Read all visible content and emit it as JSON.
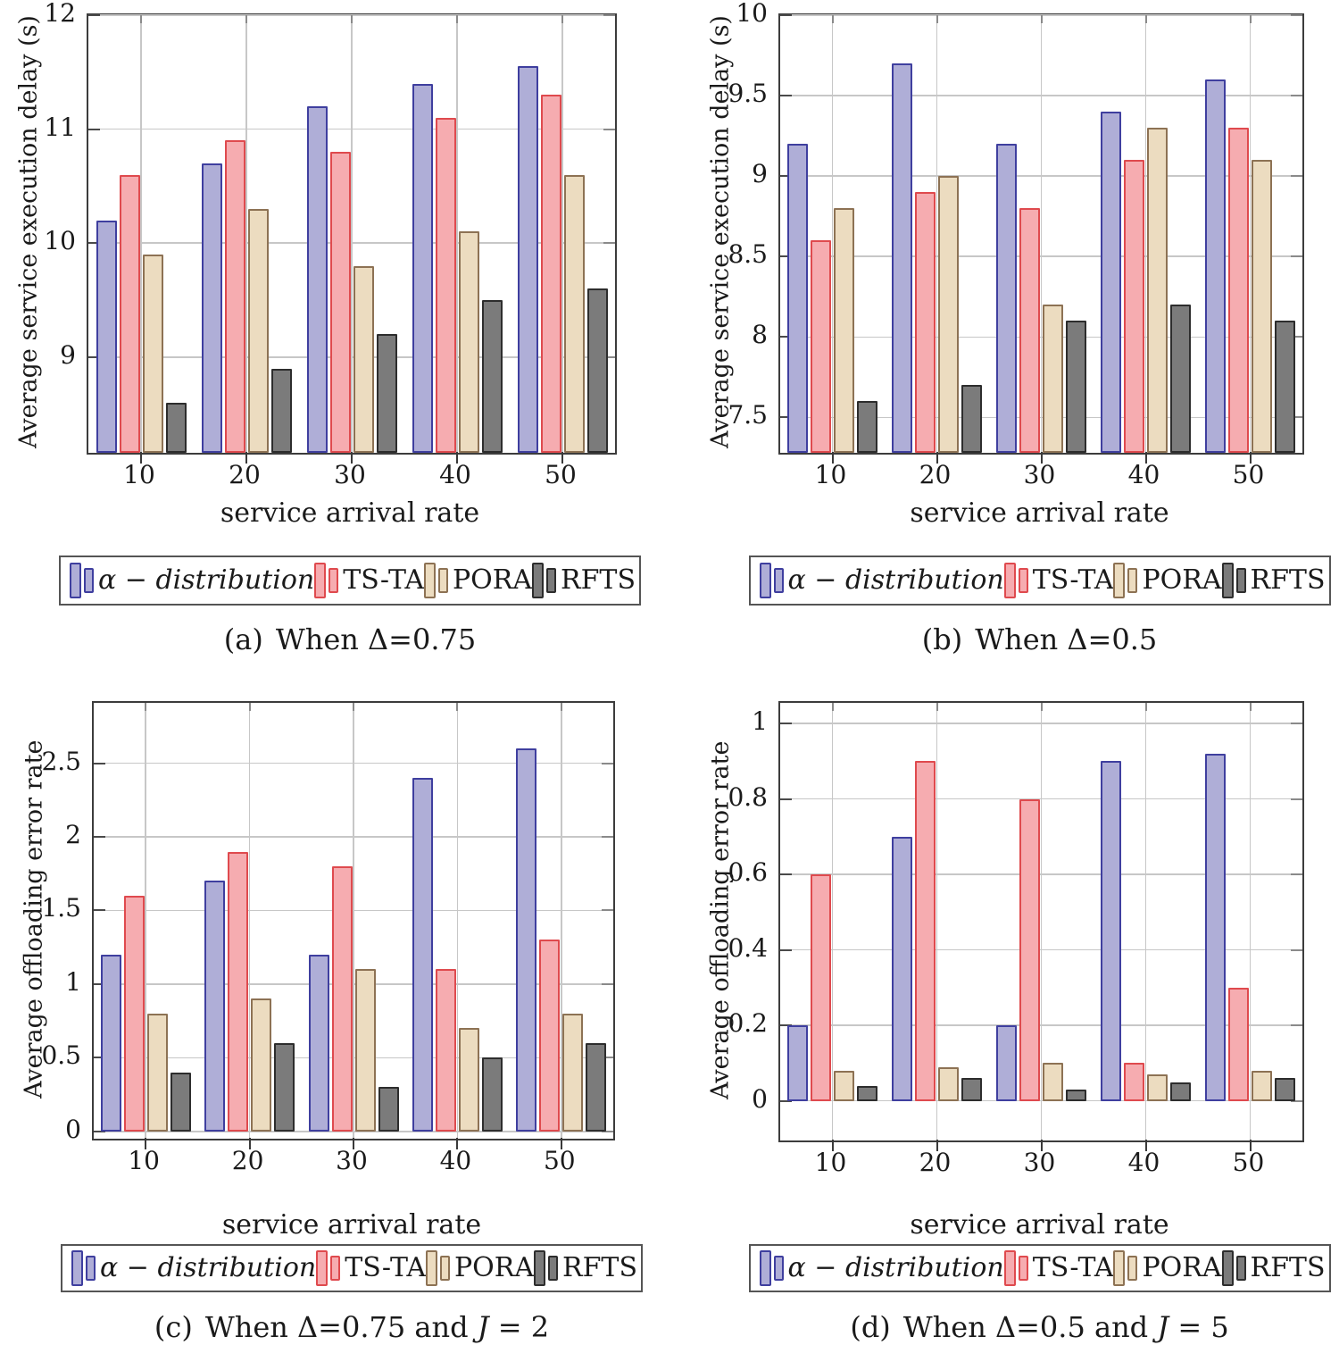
{
  "figure": {
    "x_categories": [
      "10",
      "20",
      "30",
      "40",
      "50"
    ],
    "series_names": [
      "α − distribution",
      "TS-TA",
      "PORA",
      "RFTS"
    ],
    "colors": {
      "alpha_fill": "#afaed7",
      "alpha_stroke": "#3f3f9f",
      "tsta_fill": "#f6acb0",
      "tsta_stroke": "#df4a4e",
      "pora_fill": "#ecdcc0",
      "pora_stroke": "#8d7254",
      "rfts_fill": "#7b7b7b",
      "rfts_stroke": "#2d2d2d",
      "grid": "#c7c7c7",
      "axis": "#3c3c3c"
    }
  },
  "chart_data": [
    {
      "panel": "a",
      "type": "bar",
      "ylabel": "Average service execution delay (s)",
      "xlabel": "service arrival rate",
      "caption_tag": "(a)",
      "caption_pre": "When Δ=0.75",
      "caption_j": "",
      "caption_post": "",
      "categories": [
        "10",
        "20",
        "30",
        "40",
        "50"
      ],
      "series": [
        {
          "name": "α − distribution",
          "fill": "#afaed7",
          "stroke": "#3f3f9f",
          "values": [
            10.2,
            10.7,
            11.2,
            11.4,
            11.55
          ]
        },
        {
          "name": "TS-TA",
          "fill": "#f6acb0",
          "stroke": "#df4a4e",
          "values": [
            10.6,
            10.9,
            10.8,
            11.1,
            11.3
          ]
        },
        {
          "name": "PORA",
          "fill": "#ecdcc0",
          "stroke": "#8d7254",
          "values": [
            9.9,
            10.3,
            9.8,
            10.1,
            10.6
          ]
        },
        {
          "name": "RFTS",
          "fill": "#7b7b7b",
          "stroke": "#2d2d2d",
          "values": [
            8.6,
            8.9,
            9.2,
            9.5,
            9.6
          ]
        }
      ],
      "ylim": [
        8.16,
        12
      ],
      "ytick_vals": [
        9,
        10,
        11,
        12
      ],
      "yticks": [
        "9",
        "10",
        "11",
        "12"
      ],
      "grid": true,
      "legend_position": "below"
    },
    {
      "panel": "b",
      "type": "bar",
      "ylabel": "Average service execution delay (s)",
      "xlabel": "service arrival rate",
      "caption_tag": "(b)",
      "caption_pre": "When Δ=0.5",
      "caption_j": "",
      "caption_post": "",
      "categories": [
        "10",
        "20",
        "30",
        "40",
        "50"
      ],
      "series": [
        {
          "name": "α − distribution",
          "fill": "#afaed7",
          "stroke": "#3f3f9f",
          "values": [
            9.2,
            9.7,
            9.2,
            9.4,
            9.6
          ]
        },
        {
          "name": "TS-TA",
          "fill": "#f6acb0",
          "stroke": "#df4a4e",
          "values": [
            8.6,
            8.9,
            8.8,
            9.1,
            9.3
          ]
        },
        {
          "name": "PORA",
          "fill": "#ecdcc0",
          "stroke": "#8d7254",
          "values": [
            8.8,
            9.0,
            8.2,
            9.3,
            9.1
          ]
        },
        {
          "name": "RFTS",
          "fill": "#7b7b7b",
          "stroke": "#2d2d2d",
          "values": [
            7.6,
            7.7,
            8.1,
            8.2,
            8.1
          ]
        }
      ],
      "ylim": [
        7.28,
        10
      ],
      "ytick_vals": [
        7.5,
        8,
        8.5,
        9,
        9.5,
        10
      ],
      "yticks": [
        "7.5",
        "8",
        "8.5",
        "9",
        "9.5",
        "10"
      ],
      "grid": true,
      "legend_position": "below"
    },
    {
      "panel": "c",
      "type": "bar",
      "ylabel": "Average offloading error rate",
      "xlabel": "service arrival rate",
      "caption_tag": "(c)",
      "caption_pre": "When Δ=0.75 and ",
      "caption_j": "J",
      "caption_post": " = 2",
      "categories": [
        "10",
        "20",
        "30",
        "40",
        "50"
      ],
      "series": [
        {
          "name": "α − distribution",
          "fill": "#afaed7",
          "stroke": "#3f3f9f",
          "values": [
            1.2,
            1.7,
            1.2,
            2.4,
            2.6
          ]
        },
        {
          "name": "TS-TA",
          "fill": "#f6acb0",
          "stroke": "#df4a4e",
          "values": [
            1.6,
            1.9,
            1.8,
            1.1,
            1.3
          ]
        },
        {
          "name": "PORA",
          "fill": "#ecdcc0",
          "stroke": "#8d7254",
          "values": [
            0.8,
            0.9,
            1.1,
            0.7,
            0.8
          ]
        },
        {
          "name": "RFTS",
          "fill": "#7b7b7b",
          "stroke": "#2d2d2d",
          "values": [
            0.4,
            0.6,
            0.3,
            0.5,
            0.6
          ]
        }
      ],
      "ylim": [
        -0.05,
        2.91
      ],
      "ytick_vals": [
        0,
        0.5,
        1,
        1.5,
        2,
        2.5
      ],
      "yticks": [
        "0",
        "0.5",
        "1",
        "1.5",
        "2",
        "2.5"
      ],
      "grid": true,
      "legend_position": "below"
    },
    {
      "panel": "d",
      "type": "bar",
      "ylabel": "Average offloading error rate",
      "xlabel": "service arrival rate",
      "caption_tag": "(d)",
      "caption_pre": "When Δ=0.5 and ",
      "caption_j": "J",
      "caption_post": " = 5",
      "categories": [
        "10",
        "20",
        "30",
        "40",
        "50"
      ],
      "series": [
        {
          "name": "α − distribution",
          "fill": "#afaed7",
          "stroke": "#3f3f9f",
          "values": [
            0.2,
            0.7,
            0.2,
            0.9,
            0.92
          ]
        },
        {
          "name": "TS-TA",
          "fill": "#f6acb0",
          "stroke": "#df4a4e",
          "values": [
            0.6,
            0.9,
            0.8,
            0.1,
            0.3
          ]
        },
        {
          "name": "PORA",
          "fill": "#ecdcc0",
          "stroke": "#8d7254",
          "values": [
            0.08,
            0.09,
            0.1,
            0.07,
            0.08
          ]
        },
        {
          "name": "RFTS",
          "fill": "#7b7b7b",
          "stroke": "#2d2d2d",
          "values": [
            0.04,
            0.06,
            0.03,
            0.05,
            0.06
          ]
        }
      ],
      "ylim": [
        -0.105,
        1.055
      ],
      "ytick_vals": [
        0,
        0.2,
        0.4,
        0.6,
        0.8,
        1
      ],
      "yticks": [
        "0",
        "0.2",
        "0.4",
        "0.6",
        "0.8",
        "1"
      ],
      "grid": true,
      "legend_position": "below"
    }
  ]
}
